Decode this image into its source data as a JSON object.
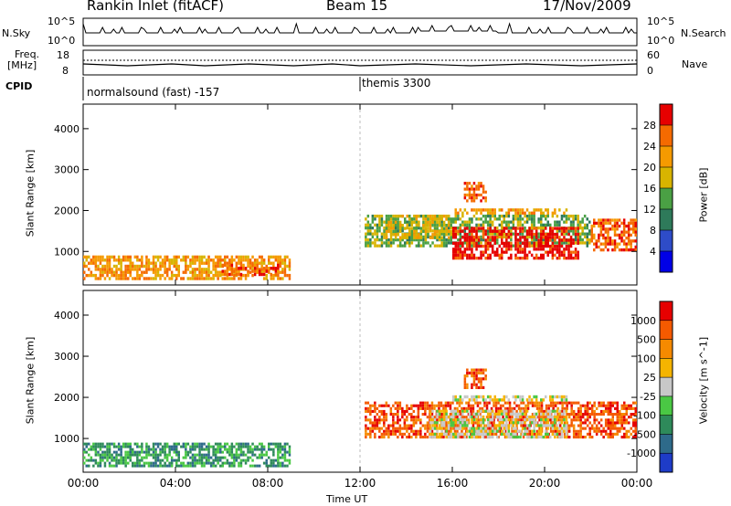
{
  "header": {
    "station": "Rankin Inlet (fitACF)",
    "beam": "Beam 15",
    "date": "17/Nov/2009"
  },
  "noise_panel": {
    "left_label": "N.Sky",
    "right_label": "N.Search",
    "left_ticks": [
      "10^5",
      "10^0"
    ],
    "right_ticks": [
      "10^5",
      "10^0"
    ]
  },
  "freq_panel": {
    "left_label_1": "Freq.",
    "left_label_2": "[MHz]",
    "right_label": "Nave",
    "left_ticks": [
      "18",
      "8"
    ],
    "right_ticks": [
      "60",
      "0"
    ]
  },
  "cpid": {
    "label": "CPID",
    "segments": [
      {
        "text": "normalsound (fast) -157",
        "start_hour": 0
      },
      {
        "text": "themis 3300",
        "start_hour": 12
      }
    ]
  },
  "chart_data": [
    {
      "type": "heatmap",
      "name": "power",
      "ylabel": "Slant Range [km]",
      "xlabel": "Time UT",
      "x_ticks": [
        "00:00",
        "04:00",
        "08:00",
        "12:00",
        "16:00",
        "20:00",
        "00:00"
      ],
      "y_ticks": [
        1000,
        2000,
        3000,
        4000
      ],
      "ylim": [
        180,
        4600
      ],
      "xlim": [
        0,
        24
      ],
      "colorbar_label": "Power [dB]",
      "colorbar_ticks": [
        "28",
        "24",
        "20",
        "16",
        "12",
        "8",
        "4"
      ],
      "colors": [
        "#0000e6",
        "#2e4cc8",
        "#2e7a5a",
        "#4aa044",
        "#d8b400",
        "#f59a00",
        "#f56a00",
        "#e60000"
      ],
      "regions": [
        {
          "x0": 0.0,
          "x1": 9.0,
          "y0": 300,
          "y1": 900,
          "level": 5
        },
        {
          "x0": 6.0,
          "x1": 8.5,
          "y0": 400,
          "y1": 700,
          "level": 6
        },
        {
          "x0": 12.2,
          "x1": 22.0,
          "y0": 1100,
          "y1": 1900,
          "level": 3
        },
        {
          "x0": 16.0,
          "x1": 21.5,
          "y0": 800,
          "y1": 1600,
          "level": 7
        },
        {
          "x0": 22.0,
          "x1": 24.0,
          "y0": 1000,
          "y1": 1800,
          "level": 6
        },
        {
          "x0": 13.0,
          "x1": 16.0,
          "y0": 1300,
          "y1": 1900,
          "level": 4
        },
        {
          "x0": 16.0,
          "x1": 21.0,
          "y0": 1900,
          "y1": 2050,
          "level": 5
        },
        {
          "x0": 16.5,
          "x1": 17.5,
          "y0": 2200,
          "y1": 2700,
          "level": 6
        }
      ]
    },
    {
      "type": "heatmap",
      "name": "velocity",
      "ylabel": "Slant Range [km]",
      "xlabel": "Time UT",
      "x_ticks": [
        "00:00",
        "04:00",
        "08:00",
        "12:00",
        "16:00",
        "20:00",
        "00:00"
      ],
      "y_ticks": [
        1000,
        2000,
        3000,
        4000
      ],
      "ylim": [
        180,
        4600
      ],
      "xlim": [
        0,
        24
      ],
      "colorbar_label": "Velocity [m s^-1]",
      "colorbar_ticks": [
        "1000",
        "500",
        "100",
        "25",
        "-25",
        "-100",
        "-500",
        "-1000"
      ],
      "colors": [
        "#1e3cc8",
        "#2e6a8a",
        "#2e8a5a",
        "#4ac844",
        "#c8c8c8",
        "#f5b400",
        "#f58a00",
        "#f55a00",
        "#e60000"
      ],
      "regions": [
        {
          "x0": 0.0,
          "x1": 9.0,
          "y0": 300,
          "y1": 900,
          "level": 2
        },
        {
          "x0": 12.2,
          "x1": 24.0,
          "y0": 1000,
          "y1": 1900,
          "level": 7
        },
        {
          "x0": 15.0,
          "x1": 21.0,
          "y0": 1000,
          "y1": 1700,
          "level": 4
        },
        {
          "x0": 16.0,
          "x1": 21.0,
          "y0": 1900,
          "y1": 2050,
          "level": 4
        },
        {
          "x0": 16.5,
          "x1": 17.5,
          "y0": 2200,
          "y1": 2700,
          "level": 7
        }
      ]
    }
  ],
  "axis": {
    "time_label": "Time UT"
  }
}
